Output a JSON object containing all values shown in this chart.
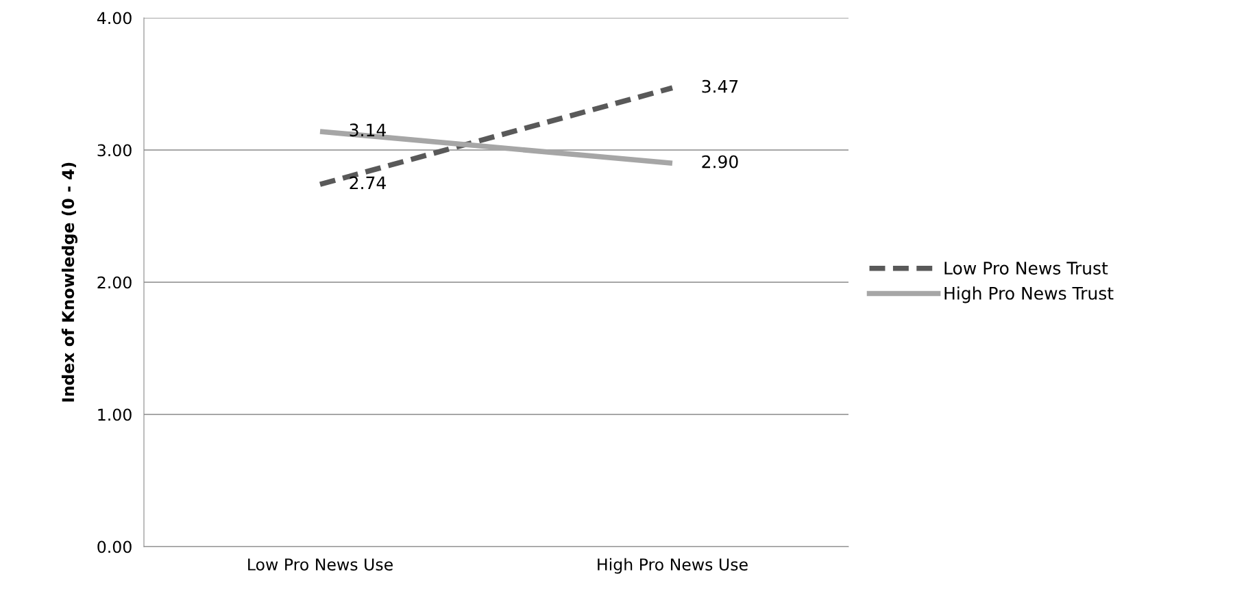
{
  "chart_data": {
    "type": "line",
    "ylabel": "Index of Knowledge (0 - 4)",
    "categories": [
      "Low Pro News Use",
      "High Pro News Use"
    ],
    "series": [
      {
        "name": "Low Pro News Trust",
        "color": "#595959",
        "values": [
          2.74,
          3.47
        ],
        "value_labels": [
          "2.74",
          "3.47"
        ],
        "line_style": "dashed"
      },
      {
        "name": "High Pro News Trust",
        "color": "#a6a6a6",
        "values": [
          3.14,
          2.9
        ],
        "value_labels": [
          "3.14",
          "2.90"
        ],
        "line_style": "solid"
      }
    ],
    "ylim": [
      0,
      4
    ],
    "yticks": [
      {
        "value": 0,
        "label": "0.00"
      },
      {
        "value": 1,
        "label": "1.00"
      },
      {
        "value": 2,
        "label": "2.00"
      },
      {
        "value": 3,
        "label": "3.00"
      },
      {
        "value": 4,
        "label": "4.00"
      }
    ],
    "grid": "y",
    "legend": "right",
    "marker": "none"
  }
}
